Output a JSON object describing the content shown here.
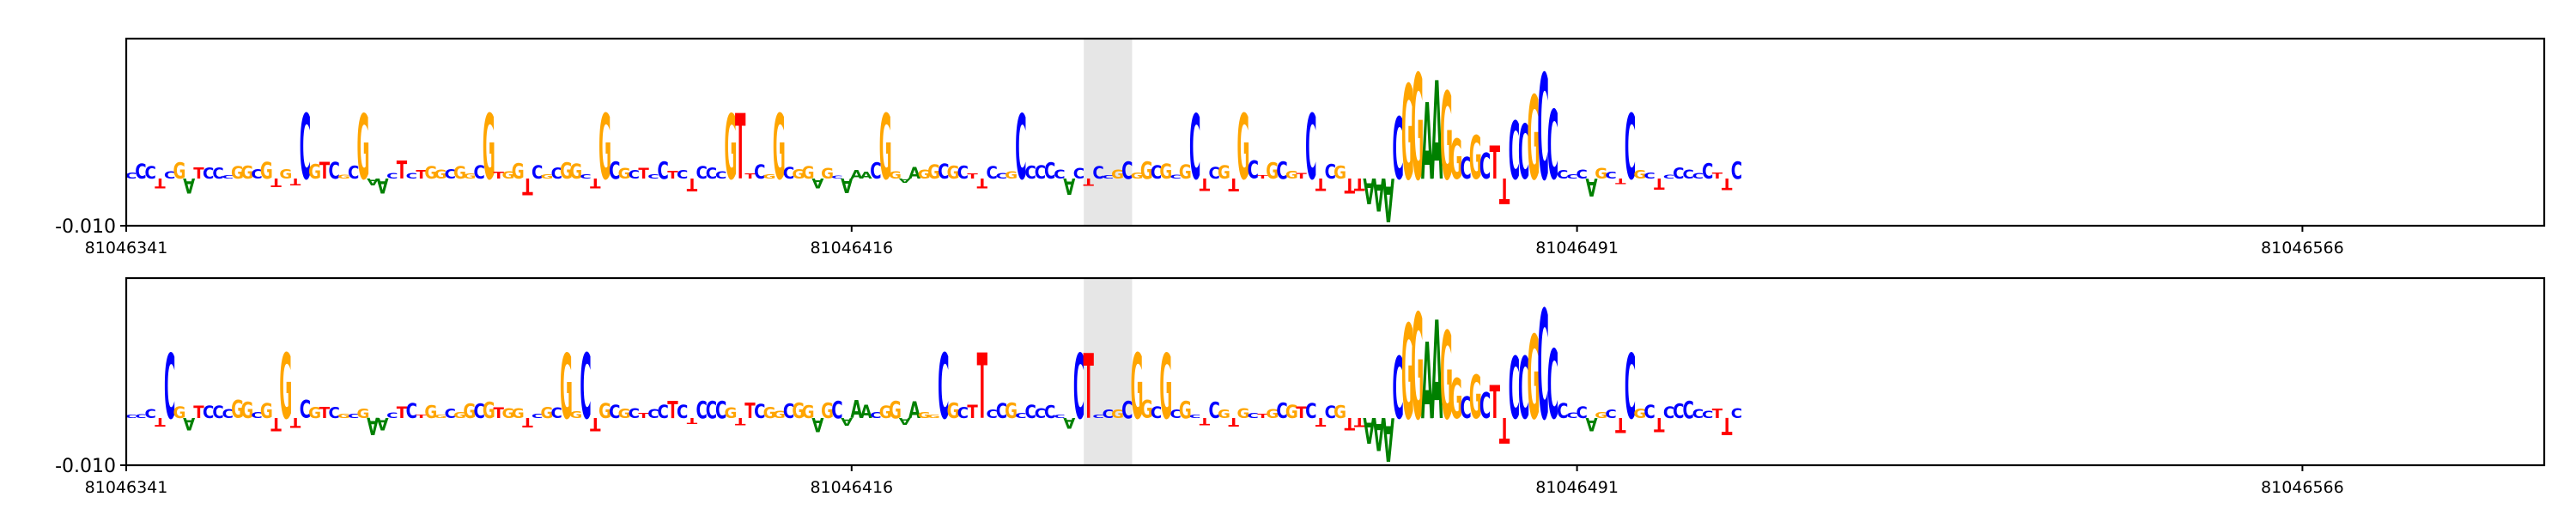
{
  "chart_data": [
    {
      "type": "sequence-logo",
      "title": "",
      "xlabel": "",
      "ylabel": "",
      "ytick_labels": [
        "-0.010"
      ],
      "xtick_labels": [
        "81046341",
        "81046416",
        "81046491",
        "81046566"
      ],
      "xlim": [
        81046341,
        81046591
      ],
      "highlight_range": [
        81046440,
        81046445
      ],
      "colors": {
        "A": "#008000",
        "C": "#0000ff",
        "G": "#ffa500",
        "T": "#ff0000",
        "highlight": "#e6e6e6"
      },
      "sequence": "CCCTCGATCCCGGCGTGTCGTCGCGAACTCTGGCGGCGTGGTCGCGGCTGCGCTCCTCTCCCGTTCGGCGGAGCAAACGGAAGGCGCTTCCGCCCCCACTCCGCGGCGCGCTCGTGCTGCGTCTCGTTGCCCGCGCTCGCGCTCCTGGCCCAGCTCGCTCCCCCTTC",
      "motif": {
        "start": 81046469,
        "letters": "AAACGGAAGGCGCTTCCGCC",
        "heights": [
          0.35,
          0.45,
          0.6,
          0.85,
          1.3,
          1.45,
          1.05,
          1.35,
          1.2,
          0.55,
          0.3,
          0.6,
          0.35,
          0.45,
          0.35,
          0.8,
          0.75,
          1.15,
          1.45,
          0.95
        ]
      }
    },
    {
      "type": "sequence-logo",
      "title": "",
      "xlabel": "",
      "ylabel": "",
      "ytick_labels": [
        "-0.010"
      ],
      "xtick_labels": [
        "81046341",
        "81046416",
        "81046491",
        "81046566"
      ],
      "xlim": [
        81046341,
        81046591
      ],
      "highlight_range": [
        81046440,
        81046445
      ],
      "colors": {
        "A": "#008000",
        "C": "#0000ff",
        "G": "#ffa500",
        "T": "#ff0000",
        "highlight": "#e6e6e6"
      },
      "sequence": "CCCTCGATCCCGGCGTGTCGTCGCGAACTCTGGCGGCGTGGTCGCGGCTGCGCTCCTCTCCCGTTCGGCGGAGCAAACGGAAGGCGCTTCCGCCCCCACTCCGCGGCGCGCTCGTGCTGCGTCTCGTTGCCCGCGCTCGCGCTCCTGGCCCAGCTCGCTCCCCCTTC",
      "motif": {
        "start": 81046469,
        "letters": "AAACGGAAGGCGCTTCCGCC",
        "heights": [
          0.35,
          0.45,
          0.6,
          0.85,
          1.3,
          1.45,
          1.05,
          1.35,
          1.2,
          0.55,
          0.3,
          0.6,
          0.35,
          0.45,
          0.35,
          0.85,
          0.85,
          1.15,
          1.5,
          0.95
        ]
      }
    }
  ]
}
